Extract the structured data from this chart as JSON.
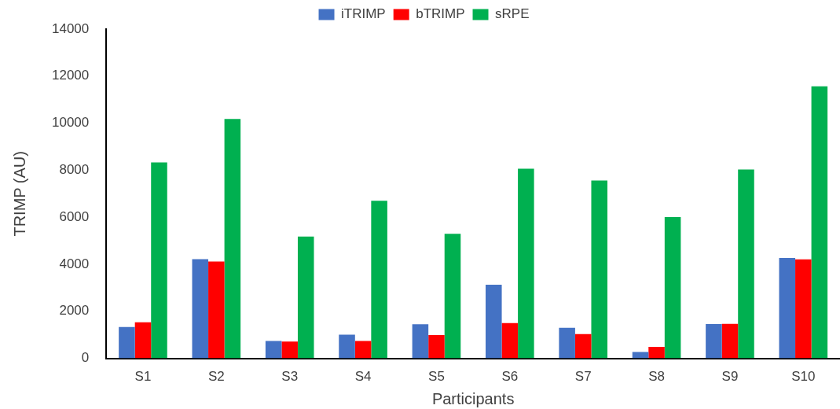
{
  "chart_data": {
    "type": "bar",
    "xlabel": "Participants",
    "ylabel": "TRIMP (AU)",
    "categories": [
      "S1",
      "S2",
      "S3",
      "S4",
      "S5",
      "S6",
      "S7",
      "S8",
      "S9",
      "S10"
    ],
    "series": [
      {
        "name": "iTRIMP",
        "color": "#4472c4",
        "values": [
          1330,
          4220,
          740,
          1010,
          1450,
          3130,
          1300,
          270,
          1460,
          4270
        ]
      },
      {
        "name": "bTRIMP",
        "color": "#ff0000",
        "values": [
          1530,
          4120,
          710,
          740,
          990,
          1500,
          1030,
          490,
          1470,
          4210
        ]
      },
      {
        "name": "sRPE",
        "color": "#00b050",
        "values": [
          8330,
          10180,
          5180,
          6700,
          5300,
          8060,
          7560,
          6010,
          8030,
          11570
        ]
      }
    ],
    "ylim": [
      0,
      14000
    ],
    "yticks": [
      0,
      2000,
      4000,
      6000,
      8000,
      10000,
      12000,
      14000
    ],
    "grid": false,
    "legend": "top"
  }
}
